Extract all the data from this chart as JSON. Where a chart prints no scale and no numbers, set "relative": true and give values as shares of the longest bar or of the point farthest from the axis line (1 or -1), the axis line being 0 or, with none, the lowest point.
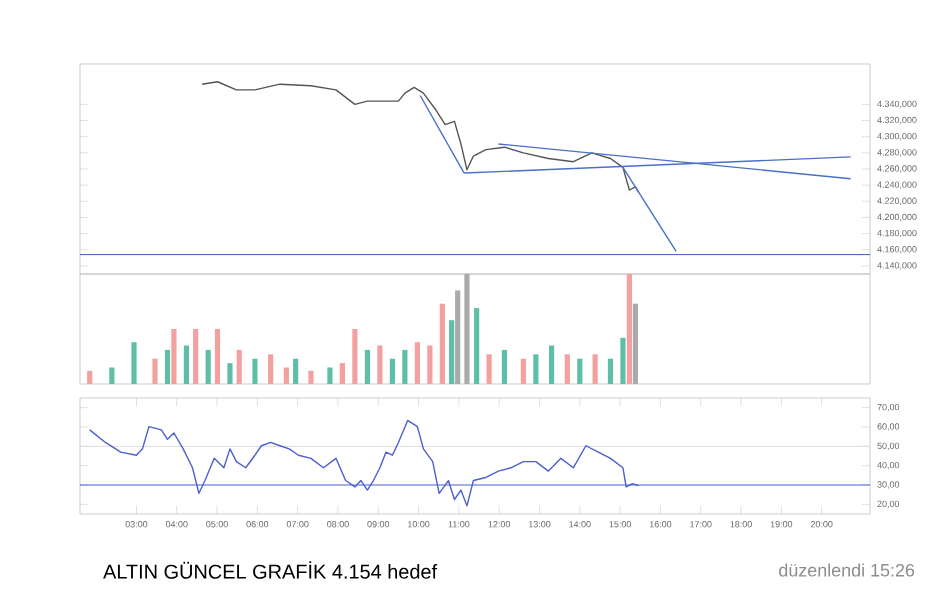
{
  "chart_data": [
    {
      "type": "line",
      "xlim": [
        1.6,
        21.2
      ],
      "ylim": [
        4130,
        4390
      ],
      "tick_labels": "y",
      "marker": "none",
      "yticks": [
        {
          "value": 4140,
          "label": "4.140,000"
        },
        {
          "value": 4160,
          "label": "4.160,000"
        },
        {
          "value": 4180,
          "label": "4.180,000"
        },
        {
          "value": 4200,
          "label": "4.200,000"
        },
        {
          "value": 4220,
          "label": "4.220,000"
        },
        {
          "value": 4240,
          "label": "4.240,000"
        },
        {
          "value": 4260,
          "label": "4.260,000"
        },
        {
          "value": 4280,
          "label": "4.280,000"
        },
        {
          "value": 4300,
          "label": "4.300,000"
        },
        {
          "value": 4320,
          "label": "4.320,000"
        },
        {
          "value": 4340,
          "label": "4.340,000"
        }
      ],
      "series": [
        {
          "color": "#555555",
          "x": [
            4.63,
            5.01,
            5.48,
            5.94,
            6.56,
            7.33,
            7.95,
            8.42,
            8.73,
            9.5,
            9.66,
            9.89,
            10.12,
            10.43,
            10.66,
            10.89,
            11.05,
            11.2,
            11.36,
            11.67,
            12.13,
            12.6,
            13.22,
            13.84,
            14.3,
            14.76,
            15.07,
            15.15,
            15.23,
            15.38,
            15.46
          ],
          "values": [
            4365,
            4368,
            4358,
            4358,
            4365,
            4363,
            4358,
            4340,
            4344,
            4344,
            4354,
            4361,
            4354,
            4333,
            4315,
            4319,
            4291,
            4259,
            4276,
            4284,
            4287,
            4280,
            4273,
            4269,
            4280,
            4273,
            4262,
            4248,
            4234,
            4238,
            4231
          ]
        },
        {
          "color": "#4a6fc9",
          "x": [
            10.04,
            11.13
          ],
          "values": [
            4351,
            4255
          ]
        },
        {
          "color": "#4a6fc9",
          "x": [
            11.13,
            20.72
          ],
          "values": [
            4255,
            4275
          ]
        },
        {
          "color": "#4a6fc9",
          "x": [
            11.98,
            20.72
          ],
          "values": [
            4291,
            4248
          ]
        },
        {
          "color": "#4a6fc9",
          "x": [
            15.07,
            16.39
          ],
          "values": [
            4262,
            4158
          ]
        }
      ],
      "ref_lines": [
        {
          "axis": "y",
          "value": 4154,
          "label": null,
          "color": "#3b5bb5"
        }
      ]
    },
    {
      "type": "bar",
      "relative": true,
      "xlim": [
        1.6,
        21.2
      ],
      "tick_labels": false,
      "x": [
        1.84,
        2.39,
        2.94,
        3.46,
        3.77,
        3.93,
        4.24,
        4.47,
        4.78,
        5.01,
        5.32,
        5.55,
        5.94,
        6.33,
        6.72,
        6.95,
        7.33,
        7.8,
        8.11,
        8.42,
        8.73,
        9.04,
        9.35,
        9.66,
        9.97,
        10.28,
        10.59,
        10.82,
        10.97,
        11.2,
        11.44,
        11.75,
        12.13,
        12.6,
        12.91,
        13.3,
        13.69,
        14.0,
        14.38,
        14.76,
        15.07,
        15.23,
        15.38
      ],
      "values": [
        0.12,
        0.15,
        0.38,
        0.23,
        0.31,
        0.5,
        0.35,
        0.5,
        0.31,
        0.5,
        0.19,
        0.31,
        0.23,
        0.27,
        0.15,
        0.23,
        0.12,
        0.15,
        0.19,
        0.5,
        0.31,
        0.35,
        0.23,
        0.31,
        0.38,
        0.35,
        0.73,
        0.58,
        0.85,
        1,
        0.69,
        0.27,
        0.31,
        0.23,
        0.27,
        0.35,
        0.27,
        0.23,
        0.27,
        0.23,
        0.42,
        1,
        0.73
      ],
      "colors": [
        "#f2a0a0",
        "#5fbfa6",
        "#5fbfa6",
        "#f2a0a0",
        "#5fbfa6",
        "#f2a0a0",
        "#5fbfa6",
        "#f2a0a0",
        "#5fbfa6",
        "#f2a0a0",
        "#5fbfa6",
        "#f2a0a0",
        "#5fbfa6",
        "#f2a0a0",
        "#f2a0a0",
        "#5fbfa6",
        "#f2a0a0",
        "#5fbfa6",
        "#f2a0a0",
        "#f2a0a0",
        "#5fbfa6",
        "#f2a0a0",
        "#5fbfa6",
        "#5fbfa6",
        "#f2a0a0",
        "#f2a0a0",
        "#f2a0a0",
        "#5fbfa6",
        "#aaaaaa",
        "#aaaaaa",
        "#5fbfa6",
        "#f2a0a0",
        "#5fbfa6",
        "#f2a0a0",
        "#5fbfa6",
        "#5fbfa6",
        "#f2a0a0",
        "#5fbfa6",
        "#f2a0a0",
        "#5fbfa6",
        "#5fbfa6",
        "#f2a0a0",
        "#aaaaaa"
      ]
    },
    {
      "type": "line",
      "xlim": [
        1.6,
        21.2
      ],
      "ylim": [
        15,
        75
      ],
      "marker": "none",
      "color": "#4a5fd0",
      "xticks": [
        {
          "value": 3,
          "label": "03:00"
        },
        {
          "value": 4,
          "label": "04:00"
        },
        {
          "value": 5,
          "label": "05:00"
        },
        {
          "value": 6,
          "label": "06:00"
        },
        {
          "value": 7,
          "label": "07:00"
        },
        {
          "value": 8,
          "label": "08:00"
        },
        {
          "value": 9,
          "label": "09:00"
        },
        {
          "value": 10,
          "label": "10:00"
        },
        {
          "value": 11,
          "label": "11:00"
        },
        {
          "value": 12,
          "label": "12:00"
        },
        {
          "value": 13,
          "label": "13:00"
        },
        {
          "value": 14,
          "label": "14:00"
        },
        {
          "value": 15,
          "label": "15:00"
        },
        {
          "value": 16,
          "label": "16:00"
        },
        {
          "value": 17,
          "label": "17:00"
        },
        {
          "value": 18,
          "label": "18:00"
        },
        {
          "value": 19,
          "label": "19:00"
        },
        {
          "value": 20,
          "label": "20:00"
        }
      ],
      "yticks": [
        {
          "value": 20,
          "label": "20,00"
        },
        {
          "value": 30,
          "label": "30,00"
        },
        {
          "value": 40,
          "label": "40,00"
        },
        {
          "value": 50,
          "label": "50,00"
        },
        {
          "value": 60,
          "label": "60,00"
        },
        {
          "value": 70,
          "label": "70,00"
        }
      ],
      "x": [
        1.84,
        2.23,
        2.61,
        3.0,
        3.15,
        3.31,
        3.62,
        3.77,
        3.93,
        4.16,
        4.39,
        4.55,
        4.7,
        4.93,
        5.17,
        5.32,
        5.48,
        5.71,
        5.94,
        6.1,
        6.33,
        6.56,
        6.79,
        7.02,
        7.33,
        7.64,
        7.95,
        8.19,
        8.42,
        8.57,
        8.73,
        8.88,
        9.04,
        9.19,
        9.35,
        9.5,
        9.73,
        9.97,
        10.12,
        10.35,
        10.51,
        10.74,
        10.89,
        11.05,
        11.2,
        11.36,
        11.67,
        11.98,
        12.29,
        12.6,
        12.91,
        13.22,
        13.53,
        13.84,
        14.15,
        14.46,
        14.76,
        15.07,
        15.15,
        15.31,
        15.46
      ],
      "values": [
        58.5,
        52,
        47,
        45.4,
        48.7,
        60.2,
        58.5,
        53.6,
        56.9,
        48.7,
        38.9,
        25.7,
        32.3,
        43.8,
        38.9,
        48.7,
        42.1,
        38.9,
        45.4,
        50.3,
        52,
        50.3,
        48.7,
        45.4,
        43.8,
        38.9,
        43.8,
        32.3,
        29,
        32.3,
        27.4,
        32.3,
        38.9,
        47,
        45.4,
        52,
        63.4,
        60.2,
        48.7,
        42.1,
        25.7,
        32.3,
        22.5,
        27.4,
        19.2,
        32.3,
        33.9,
        37.2,
        38.9,
        42.1,
        42.1,
        37.2,
        43.8,
        38.9,
        50.3,
        47,
        43.8,
        38.9,
        29,
        30.7,
        29.7
      ],
      "ref_lines": [
        {
          "axis": "y",
          "value": 30,
          "label": null,
          "color": "#4a5fd0"
        },
        {
          "axis": "y",
          "value": 50,
          "label": null,
          "color": "#dddddd"
        }
      ],
      "annotations": [
        "ALTIN GÜNCEL GRAFİK 4.154 hedef",
        "düzenlendi 15:26"
      ]
    }
  ]
}
